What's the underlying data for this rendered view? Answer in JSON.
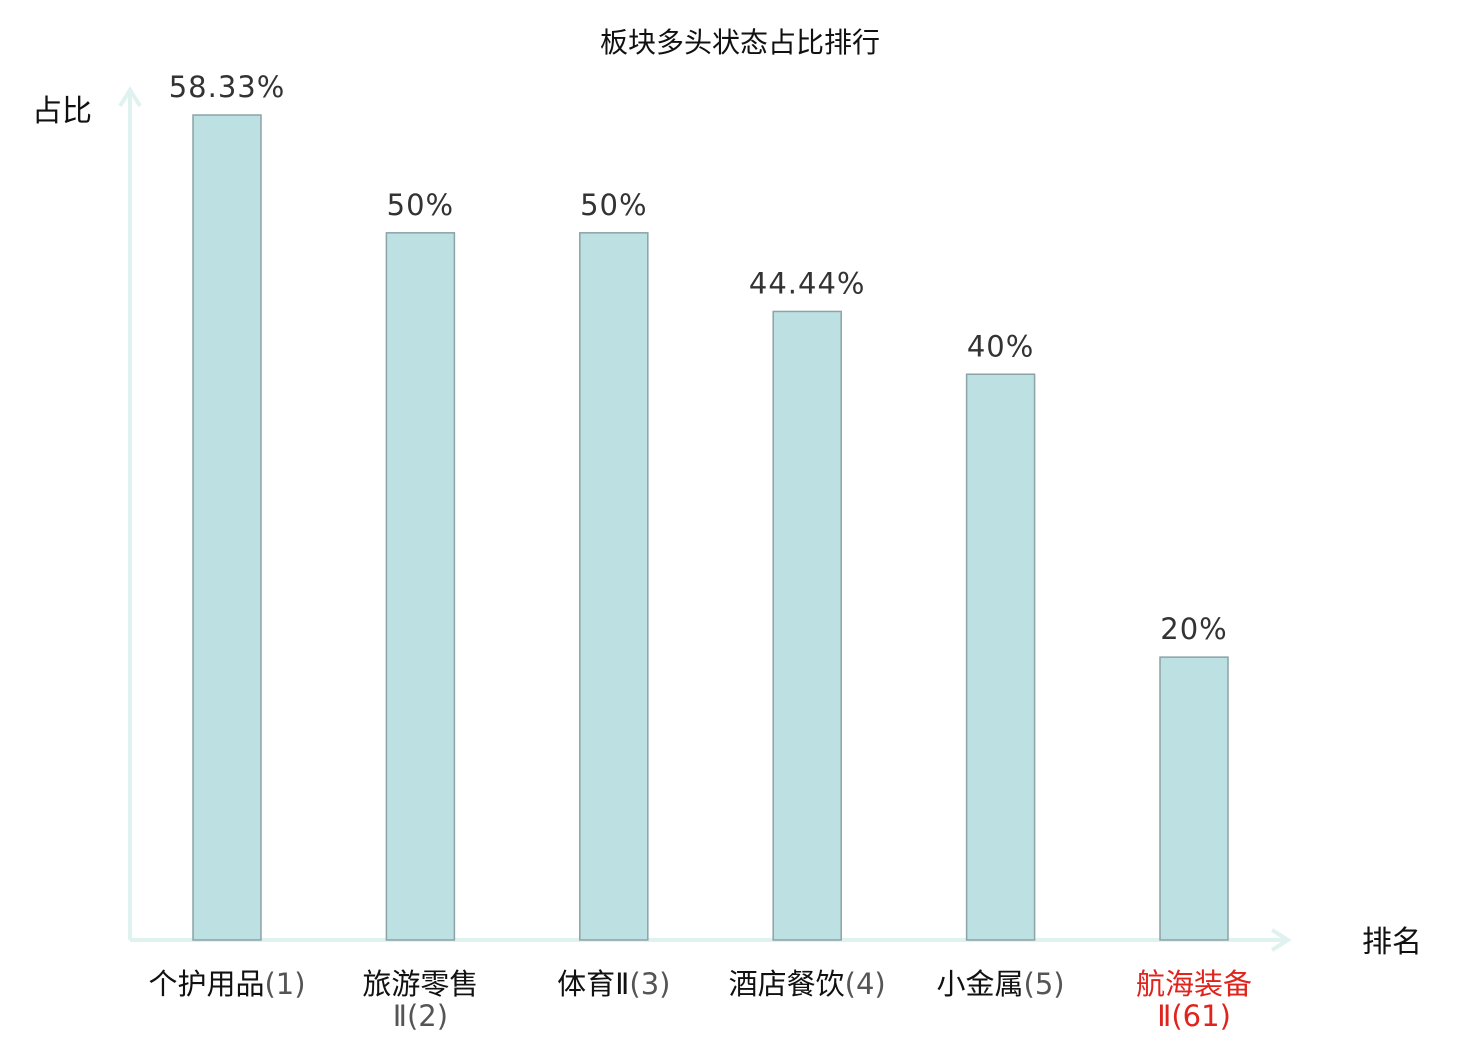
{
  "chart_data": {
    "type": "bar",
    "title": "板块多头状态占比排行",
    "xlabel": "排名",
    "ylabel": "占比",
    "ylim": [
      0,
      0.7
    ],
    "grid": false,
    "categories": [
      {
        "name": "个护用品",
        "rank": "(1)",
        "highlight": false
      },
      {
        "name": "旅游零售",
        "rank": "Ⅱ(2)",
        "highlight": false
      },
      {
        "name": "体育Ⅱ",
        "rank": "(3)",
        "highlight": false
      },
      {
        "name": "酒店餐饮",
        "rank": "(4)",
        "highlight": false
      },
      {
        "name": "小金属",
        "rank": "(5)",
        "highlight": false
      },
      {
        "name": "航海装备",
        "rank": "Ⅱ(61)",
        "highlight": true
      }
    ],
    "values": [
      0.5833,
      0.5,
      0.5,
      0.4444,
      0.4,
      0.2
    ],
    "value_labels": [
      "58.33%",
      "50%",
      "50%",
      "44.44%",
      "40%",
      "20%"
    ]
  },
  "colors": {
    "bar_fill": "#bde0e3",
    "bar_stroke": "#8aa3a6",
    "axis": "#dff2ef",
    "highlight": "#e0231c",
    "rank_text": "#555555",
    "name_text": "#111111"
  }
}
